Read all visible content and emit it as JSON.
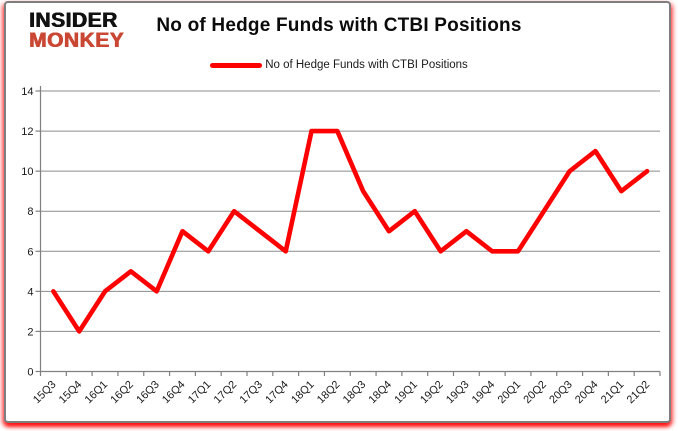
{
  "logo": {
    "line1": "INSIDER",
    "line2": "MONKEY",
    "monkey_color": "#C94733"
  },
  "title": "No of Hedge Funds with CTBI Positions",
  "legend": {
    "label": "No of Hedge Funds with CTBI Positions",
    "swatch_color": "#FF0000"
  },
  "chart_data": {
    "type": "line",
    "title": "No of Hedge Funds with CTBI Positions",
    "categories": [
      "15Q3",
      "15Q4",
      "16Q1",
      "16Q2",
      "16Q3",
      "16Q4",
      "17Q1",
      "17Q2",
      "17Q3",
      "17Q4",
      "18Q1",
      "18Q2",
      "18Q3",
      "18Q4",
      "19Q1",
      "19Q2",
      "19Q3",
      "19Q4",
      "20Q1",
      "20Q2",
      "20Q3",
      "20Q4",
      "21Q1",
      "21Q2"
    ],
    "series": [
      {
        "name": "No of Hedge Funds with CTBI Positions",
        "color": "#FF0000",
        "values": [
          4,
          2,
          4,
          5,
          4,
          7,
          6,
          8,
          7,
          6,
          12,
          12,
          9,
          7,
          8,
          6,
          7,
          6,
          6,
          8,
          10,
          11,
          9,
          10
        ]
      }
    ],
    "ylim": [
      0,
      14
    ],
    "yticks": [
      0,
      2,
      4,
      6,
      8,
      10,
      12,
      14
    ],
    "grid": true,
    "legend_position": "top-center",
    "xlabel": "",
    "ylabel": ""
  },
  "colors": {
    "line": "#FF0000",
    "gridline": "#8C8C8C",
    "axis": "#808080",
    "text": "#1A1A1A",
    "frame_border": "#7E7E7E",
    "glow": "#FF0000",
    "background": "#FFFFFF"
  }
}
